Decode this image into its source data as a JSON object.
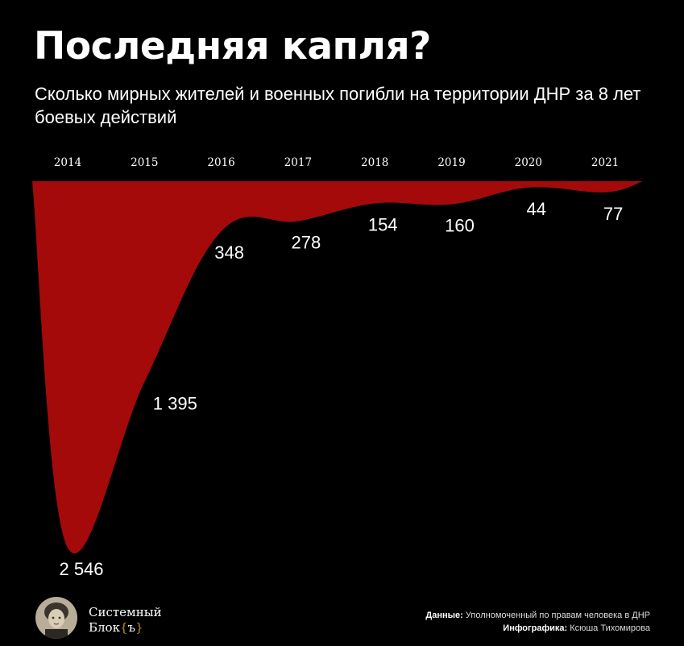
{
  "header": {
    "title": "Последняя капля?",
    "subtitle": "Сколько мирных жителей и военных погибли на территории ДНР за 8 лет боевых действий"
  },
  "chart_data": {
    "type": "area",
    "title": "Последняя капля?",
    "subtitle": "Сколько мирных жителей и военных погибли на территории ДНР за 8 лет боевых действий",
    "categories": [
      "2014",
      "2015",
      "2016",
      "2017",
      "2018",
      "2019",
      "2020",
      "2021"
    ],
    "values": [
      2546,
      1395,
      348,
      278,
      154,
      160,
      44,
      77
    ],
    "value_labels": [
      "2 546",
      "1 395",
      "348",
      "278",
      "154",
      "160",
      "44",
      "77"
    ],
    "ylim": [
      0,
      2546
    ],
    "orientation": "inverted",
    "grid": false,
    "colors": {
      "area": "#a50a0a",
      "background": "#000000"
    }
  },
  "footer": {
    "brand_line1": "Системный",
    "brand_line2": "Блок",
    "brand_brace_open": "{",
    "brand_brace_char": "ъ",
    "brand_brace_close": "}",
    "source_label": "Данные:",
    "source_value": "Уполномоченный по правам человека в ДНР",
    "credit_label": "Инфографика:",
    "credit_value": "Ксюша Тихомирова",
    "logo_icon": "portrait-avatar-icon"
  }
}
